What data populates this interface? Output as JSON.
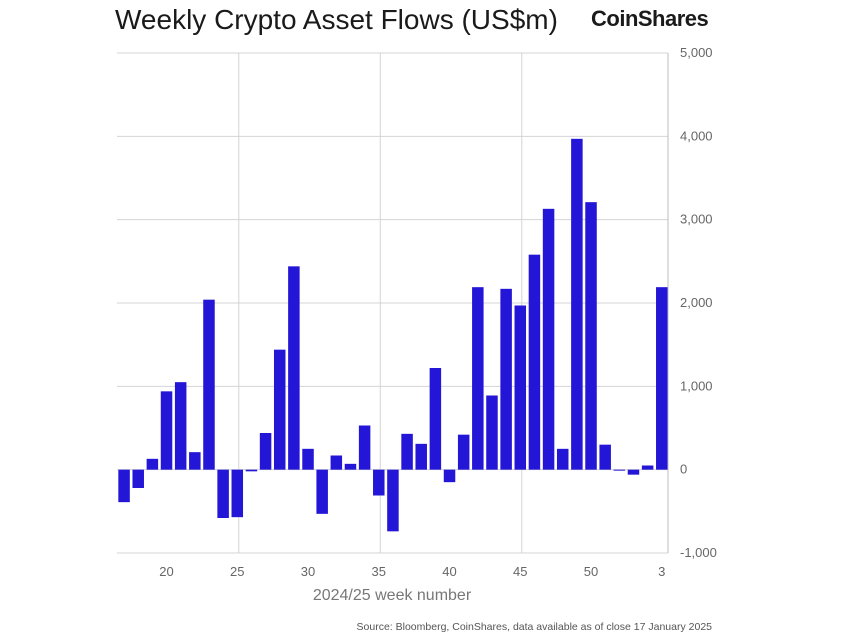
{
  "header": {
    "title": "Weekly Crypto Asset Flows (US$m)",
    "brand": "CoinShares"
  },
  "footer": {
    "source": "Source: Bloomberg, CoinShares, data available as of close 17 January 2025"
  },
  "colors": {
    "bar": "#2416d6",
    "grid": "#d4d4d4",
    "text": "#666666"
  },
  "chart_data": {
    "type": "bar",
    "title": "Weekly Crypto Asset Flows (US$m)",
    "xlabel": "2024/25 week number",
    "ylabel": "",
    "ylim": [
      -1000,
      5000
    ],
    "yticks": [
      -1000,
      0,
      1000,
      2000,
      3000,
      4000,
      5000
    ],
    "ytick_labels": [
      "-1,000",
      "0",
      "1,000",
      "2,000",
      "3,000",
      "4,000",
      "5,000"
    ],
    "xtick_labels": [
      "20",
      "25",
      "30",
      "35",
      "40",
      "45",
      "50",
      "3"
    ],
    "y_axis_position": "right",
    "grid": "vertical lines at week 25, 35, 45; horizontal lines at each y tick",
    "categories": [
      "17",
      "18",
      "19",
      "20",
      "21",
      "22",
      "23",
      "24",
      "25",
      "26",
      "27",
      "28",
      "29",
      "30",
      "31",
      "32",
      "33",
      "34",
      "35",
      "36",
      "37",
      "38",
      "39",
      "40",
      "41",
      "42",
      "43",
      "44",
      "45",
      "46",
      "47",
      "48",
      "49",
      "50",
      "51",
      "52",
      "1",
      "2",
      "3"
    ],
    "values": [
      -390,
      -220,
      130,
      940,
      1050,
      210,
      2040,
      -580,
      -570,
      -20,
      440,
      1440,
      2440,
      250,
      -530,
      170,
      70,
      530,
      -310,
      -740,
      430,
      310,
      1220,
      -150,
      420,
      2190,
      890,
      2170,
      1970,
      2580,
      3130,
      250,
      3970,
      3210,
      300,
      -10,
      -60,
      50,
      2190
    ]
  }
}
